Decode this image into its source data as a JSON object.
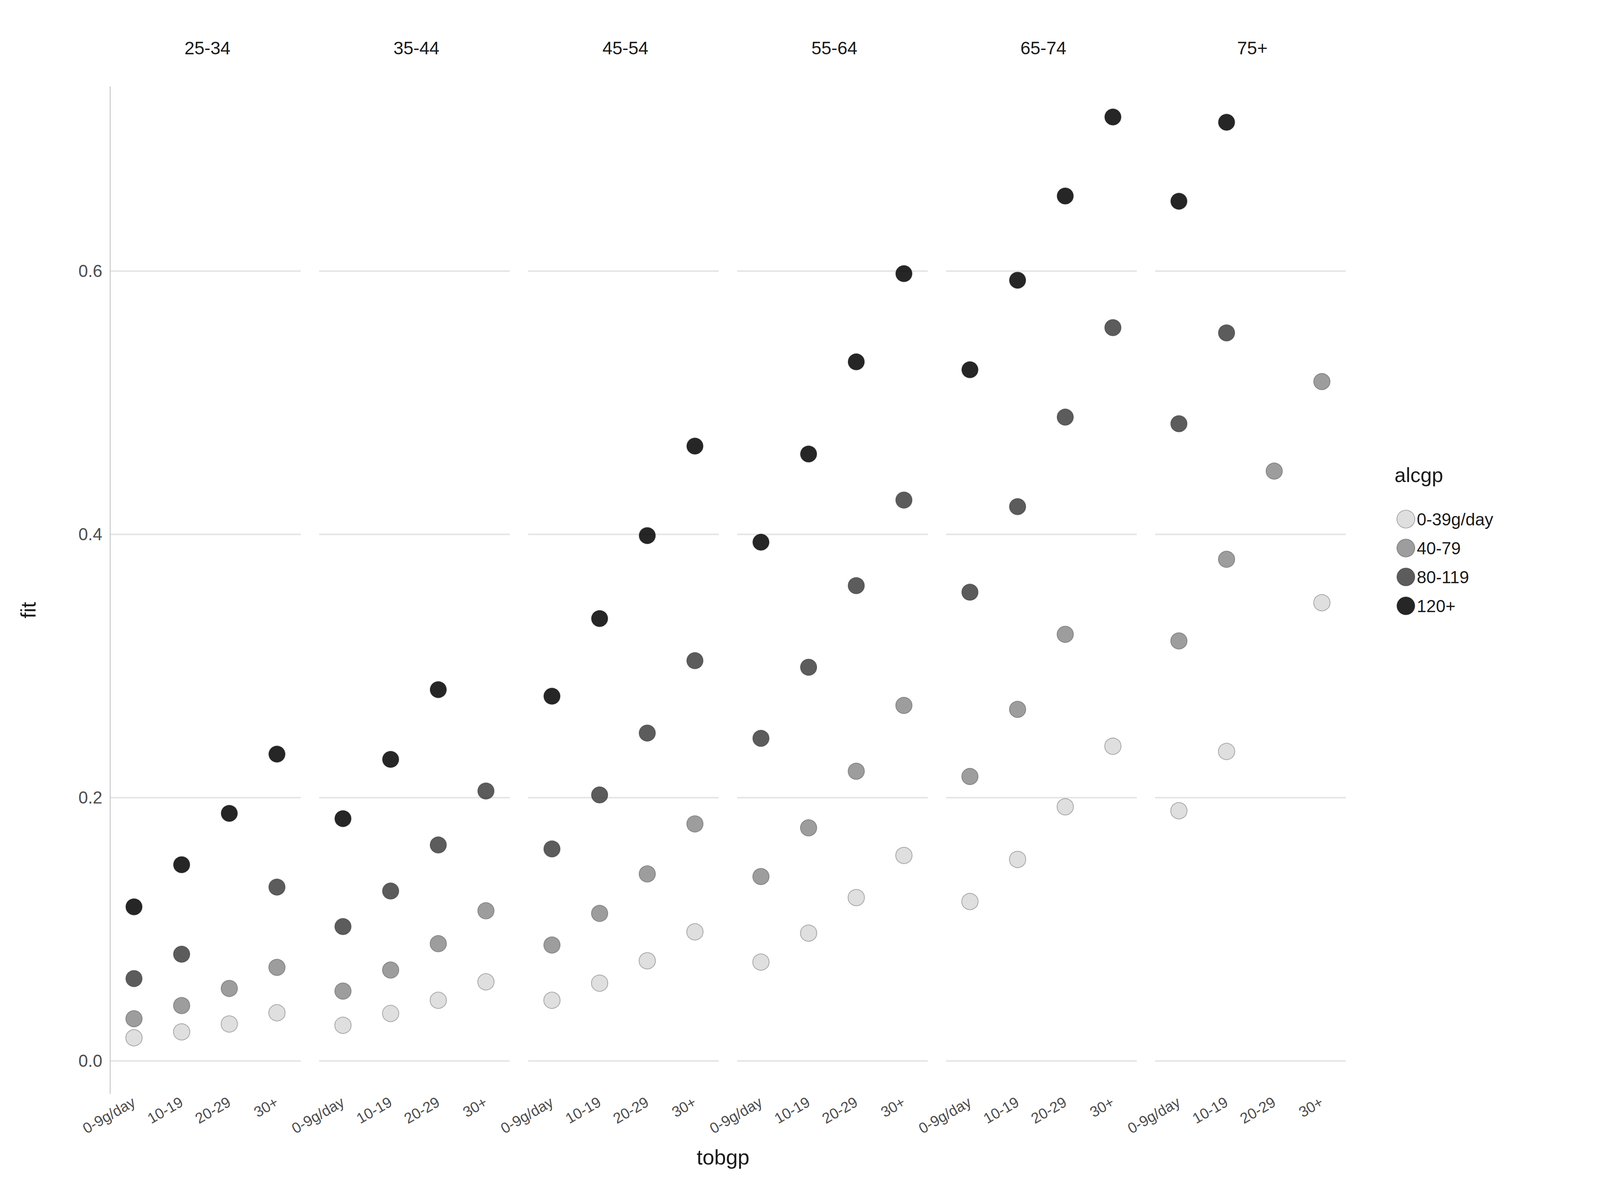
{
  "chart_data": {
    "type": "scatter",
    "xlabel": "tobgp",
    "ylabel": "fit",
    "legend_title": "alcgp",
    "legend": "right",
    "grid": true,
    "categories": [
      "0-9g/day",
      "10-19",
      "20-29",
      "30+"
    ],
    "ylim": [
      -0.025,
      0.74
    ],
    "yticks": [
      {
        "value": 0,
        "label": "0.0"
      },
      0.2,
      0.4,
      0.6
    ],
    "panels": [
      {
        "title": "25-34",
        "series": [
          {
            "name": "0-39g/day",
            "color": "#d9d9d9",
            "values": [
              0.0175,
              0.022,
              0.028,
              0.0365
            ]
          },
          {
            "name": "40-79",
            "color": "#8c8c8c",
            "values": [
              0.032,
              0.042,
              0.055,
              0.071
            ]
          },
          {
            "name": "80-119",
            "color": "#404040",
            "values": [
              0.0625,
              0.081,
              null,
              0.132
            ]
          },
          {
            "name": "120+",
            "color": "#000000",
            "values": [
              0.117,
              0.149,
              0.188,
              0.233
            ]
          }
        ]
      },
      {
        "title": "35-44",
        "series": [
          {
            "name": "0-39g/day",
            "color": "#d9d9d9",
            "values": [
              0.027,
              0.036,
              0.046,
              0.06
            ]
          },
          {
            "name": "40-79",
            "color": "#8c8c8c",
            "values": [
              0.053,
              0.069,
              0.089,
              0.114
            ]
          },
          {
            "name": "80-119",
            "color": "#404040",
            "values": [
              0.102,
              0.129,
              0.164,
              0.205
            ]
          },
          {
            "name": "120+",
            "color": "#000000",
            "values": [
              0.184,
              0.229,
              0.282,
              null
            ]
          }
        ]
      },
      {
        "title": "45-54",
        "series": [
          {
            "name": "0-39g/day",
            "color": "#d9d9d9",
            "values": [
              0.046,
              0.059,
              0.076,
              0.098
            ]
          },
          {
            "name": "40-79",
            "color": "#8c8c8c",
            "values": [
              0.088,
              0.112,
              0.142,
              0.18
            ]
          },
          {
            "name": "80-119",
            "color": "#404040",
            "values": [
              0.161,
              0.202,
              0.249,
              0.304
            ]
          },
          {
            "name": "120+",
            "color": "#000000",
            "values": [
              0.277,
              0.336,
              0.399,
              0.467
            ]
          }
        ]
      },
      {
        "title": "55-64",
        "series": [
          {
            "name": "0-39g/day",
            "color": "#d9d9d9",
            "values": [
              0.075,
              0.097,
              0.124,
              0.156
            ]
          },
          {
            "name": "40-79",
            "color": "#8c8c8c",
            "values": [
              0.14,
              0.177,
              0.22,
              0.27
            ]
          },
          {
            "name": "80-119",
            "color": "#404040",
            "values": [
              0.245,
              0.299,
              0.361,
              0.426
            ]
          },
          {
            "name": "120+",
            "color": "#000000",
            "values": [
              0.394,
              0.461,
              0.531,
              0.598
            ]
          }
        ]
      },
      {
        "title": "65-74",
        "series": [
          {
            "name": "0-39g/day",
            "color": "#d9d9d9",
            "values": [
              0.121,
              0.153,
              0.193,
              0.239
            ]
          },
          {
            "name": "40-79",
            "color": "#8c8c8c",
            "values": [
              0.216,
              0.267,
              0.324,
              null
            ]
          },
          {
            "name": "80-119",
            "color": "#404040",
            "values": [
              0.356,
              0.421,
              0.489,
              0.557
            ]
          },
          {
            "name": "120+",
            "color": "#000000",
            "values": [
              0.525,
              0.593,
              0.657,
              0.717
            ]
          }
        ]
      },
      {
        "title": "75+",
        "series": [
          {
            "name": "0-39g/day",
            "color": "#d9d9d9",
            "values": [
              0.19,
              0.235,
              null,
              0.348
            ]
          },
          {
            "name": "40-79",
            "color": "#8c8c8c",
            "values": [
              0.319,
              0.381,
              0.448,
              0.516
            ]
          },
          {
            "name": "80-119",
            "color": "#404040",
            "values": [
              0.484,
              0.553,
              null,
              null
            ]
          },
          {
            "name": "120+",
            "color": "#000000",
            "values": [
              0.653,
              0.713,
              null,
              null
            ]
          }
        ]
      }
    ]
  }
}
